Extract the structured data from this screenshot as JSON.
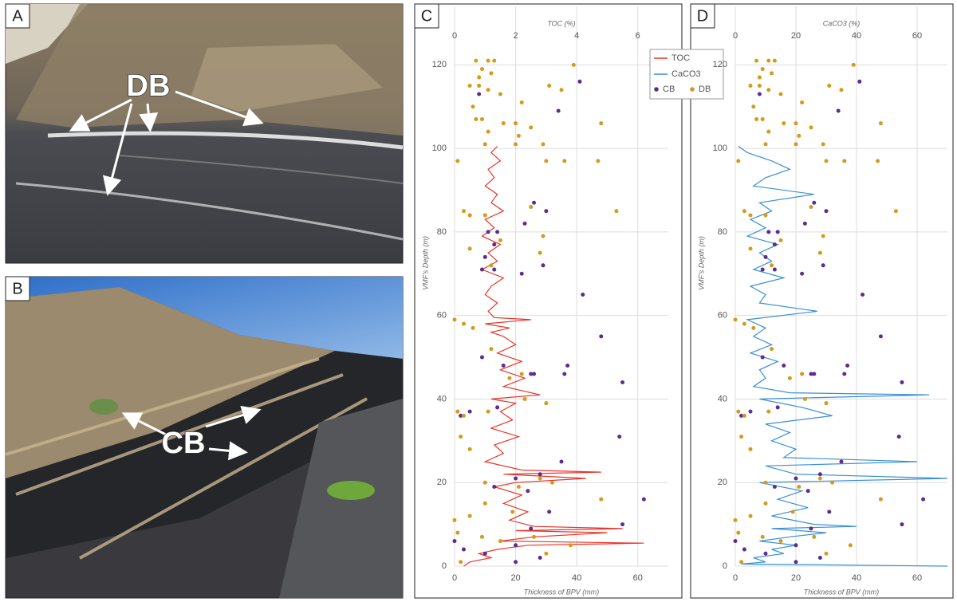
{
  "panels": [
    {
      "letter": "A",
      "label": "DB"
    },
    {
      "letter": "B",
      "label": "CB"
    }
  ],
  "chart_data": [
    {
      "type": "scatter",
      "letter": "C",
      "x_label": "Thickness of BPV (mm)",
      "x2_label": "TOC (%)",
      "y_label": "VMF's Depth (m)",
      "xlim": [
        0,
        70
      ],
      "xticks": [
        0,
        20,
        40,
        60
      ],
      "x2lim": [
        0,
        7
      ],
      "x2ticks": [
        0,
        2,
        4,
        6
      ],
      "ylim": [
        0,
        134
      ],
      "yticks": [
        0,
        20,
        40,
        60,
        80,
        100,
        120
      ],
      "grid": true,
      "legend_position": "upper right",
      "legend": [
        {
          "name": "TOC",
          "color": "#e8352a"
        },
        {
          "name": "CaCO3",
          "color": "#3a8fd4"
        },
        {
          "name": "CB",
          "color": "#5b2d8e"
        },
        {
          "name": "DB",
          "color": "#d39a1c"
        }
      ],
      "lines": [
        {
          "color": "#e8352a",
          "axis": "x2",
          "x": [
            1.4,
            1.2,
            1.5,
            1.1,
            1.3,
            1.0,
            1.4,
            1.2,
            1.6,
            1.0,
            1.3,
            0.9,
            1.5,
            1.1,
            1.4,
            0.9,
            1.6,
            1.2,
            1.0,
            1.4,
            1.1,
            1.3,
            2.5,
            1.0,
            1.8,
            1.2,
            1.6,
            2.0,
            1.4,
            2.2,
            1.5,
            2.3,
            1.6,
            2.8,
            1.2,
            2.0,
            1.5,
            1.9,
            1.2,
            2.1,
            1.3,
            1.6,
            1.0,
            2.2,
            4.8,
            1.6,
            4.3,
            2.0,
            1.3,
            2.2,
            1.6,
            2.4,
            1.8,
            2.6,
            5.5,
            2.0,
            5.0,
            2.6,
            1.5,
            6.2,
            2.4,
            1.4,
            0.8,
            1.2,
            0.5,
            0.3
          ],
          "y": [
            100.5,
            99,
            97,
            95,
            93,
            91,
            89,
            87,
            85,
            83,
            81,
            79,
            77,
            75,
            73,
            71,
            69,
            67,
            65,
            63,
            61,
            59.5,
            59,
            58,
            57,
            56,
            55,
            53,
            51,
            49,
            47,
            45,
            43,
            41,
            40,
            39,
            37,
            35,
            33,
            31,
            29,
            27,
            25,
            23,
            22.5,
            22,
            21,
            20,
            19,
            17,
            15,
            13,
            11,
            9.5,
            9,
            8.5,
            8,
            7,
            6,
            5.5,
            5,
            4,
            3,
            2,
            1,
            0
          ]
        }
      ],
      "points": [
        {
          "color": "#5b2d8e",
          "x": [
            41,
            8,
            34,
            26,
            30,
            23,
            14,
            11,
            13,
            10,
            13,
            9,
            29,
            22,
            42,
            48,
            9,
            16,
            25,
            26,
            37,
            36,
            55,
            14,
            5,
            2,
            54,
            35,
            28,
            20,
            13,
            24,
            62,
            31,
            25,
            55,
            0,
            20,
            3,
            10,
            20,
            28
          ],
          "y": [
            116,
            113,
            109,
            87,
            85,
            82,
            80,
            80,
            77,
            74,
            71,
            71,
            72,
            70,
            65,
            55,
            50,
            48,
            46,
            46,
            48,
            46,
            44,
            38,
            37,
            36,
            31,
            25,
            22,
            21,
            19,
            18,
            16,
            13,
            9,
            10,
            6,
            5,
            4,
            3,
            1,
            2
          ]
        },
        {
          "color": "#d39a1c",
          "x": [
            7,
            11,
            13,
            9,
            39,
            8,
            8,
            12,
            5,
            35,
            6,
            11,
            15,
            22,
            31,
            7,
            9,
            11,
            16,
            20,
            25,
            21,
            48,
            20,
            10,
            29,
            30,
            36,
            47,
            1,
            3,
            5,
            10,
            25,
            53,
            29,
            15,
            5,
            12,
            28,
            0,
            3,
            6,
            12,
            22,
            18,
            23,
            1,
            3,
            11,
            30,
            2,
            5,
            10,
            28,
            21,
            32,
            10,
            19,
            0,
            5,
            48,
            1,
            9,
            15,
            26,
            30,
            38,
            2
          ],
          "y": [
            121,
            121,
            121,
            119,
            120,
            117,
            115,
            118,
            115,
            114,
            110,
            114,
            113,
            111,
            115,
            107,
            107,
            104,
            106,
            106,
            105,
            103,
            106,
            101,
            101,
            101,
            97,
            97,
            97,
            97,
            85,
            84,
            84,
            86,
            85,
            79,
            78,
            76,
            72,
            75,
            59,
            58,
            57,
            52,
            46,
            45,
            40,
            37,
            36,
            37,
            39,
            31,
            28,
            20,
            21,
            19,
            20,
            15,
            13,
            11,
            12,
            16,
            8,
            7,
            6,
            7,
            3,
            5,
            1
          ]
        }
      ]
    },
    {
      "type": "scatter",
      "letter": "D",
      "x_label": "Thickness of BPV (mm)",
      "x2_label": "CaCO3 (%)",
      "y_label": "VMF's Depth (m)",
      "xlim": [
        0,
        70
      ],
      "xticks": [
        0,
        20,
        40,
        60
      ],
      "x2lim": [
        0,
        70
      ],
      "x2ticks": [
        0,
        20,
        40,
        60
      ],
      "ylim": [
        0,
        134
      ],
      "yticks": [
        0,
        20,
        40,
        60,
        80,
        100,
        120
      ],
      "grid": true,
      "lines": [
        {
          "color": "#3a8fd4",
          "axis": "x2",
          "x": [
            1,
            4,
            12,
            18,
            10,
            6,
            26,
            8,
            12,
            5,
            10,
            4,
            14,
            8,
            12,
            6,
            16,
            5,
            10,
            8,
            27,
            4,
            10,
            6,
            12,
            5,
            14,
            8,
            10,
            6,
            18,
            64,
            8,
            22,
            32,
            10,
            18,
            12,
            20,
            16,
            60,
            10,
            20,
            70,
            8,
            22,
            14,
            24,
            12,
            26,
            40,
            12,
            30,
            18,
            8,
            20,
            12,
            16,
            6,
            10,
            2,
            70
          ],
          "y": [
            100.5,
            99,
            97,
            95,
            93,
            91,
            89,
            87,
            85,
            83,
            81,
            79,
            77,
            75,
            73,
            71,
            69,
            67,
            65,
            63,
            61,
            59,
            57,
            55,
            53,
            51,
            49,
            47,
            45,
            43,
            41.5,
            41,
            40,
            38,
            36,
            34,
            32,
            30,
            28,
            26,
            25,
            24,
            22,
            21,
            20,
            18,
            16,
            14,
            12,
            10,
            9.5,
            9,
            8,
            7,
            6,
            5,
            4,
            3,
            2,
            1,
            0.5,
            0
          ]
        }
      ],
      "points": [
        {
          "color": "#5b2d8e",
          "x": [
            41,
            8,
            34,
            26,
            30,
            23,
            14,
            11,
            13,
            10,
            13,
            9,
            29,
            22,
            42,
            48,
            9,
            16,
            25,
            26,
            37,
            36,
            55,
            14,
            5,
            2,
            54,
            35,
            28,
            20,
            13,
            24,
            62,
            31,
            25,
            55,
            0,
            20,
            3,
            10,
            20,
            28
          ],
          "y": [
            116,
            113,
            109,
            87,
            85,
            82,
            80,
            80,
            77,
            74,
            71,
            71,
            72,
            70,
            65,
            55,
            50,
            48,
            46,
            46,
            48,
            46,
            44,
            38,
            37,
            36,
            31,
            25,
            22,
            21,
            19,
            18,
            16,
            13,
            9,
            10,
            6,
            5,
            4,
            3,
            1,
            2
          ]
        },
        {
          "color": "#d39a1c",
          "x": [
            7,
            11,
            13,
            9,
            39,
            8,
            8,
            12,
            5,
            35,
            6,
            11,
            15,
            22,
            31,
            7,
            9,
            11,
            16,
            20,
            25,
            21,
            48,
            20,
            10,
            29,
            30,
            36,
            47,
            1,
            3,
            5,
            10,
            25,
            53,
            29,
            15,
            5,
            12,
            28,
            0,
            3,
            6,
            12,
            22,
            18,
            23,
            1,
            3,
            11,
            30,
            2,
            5,
            10,
            28,
            21,
            32,
            10,
            19,
            0,
            5,
            48,
            1,
            9,
            15,
            26,
            30,
            38,
            2
          ],
          "y": [
            121,
            121,
            121,
            119,
            120,
            117,
            115,
            118,
            115,
            114,
            110,
            114,
            113,
            111,
            115,
            107,
            107,
            104,
            106,
            106,
            105,
            103,
            106,
            101,
            101,
            101,
            97,
            97,
            97,
            97,
            85,
            84,
            84,
            86,
            85,
            79,
            78,
            76,
            72,
            75,
            59,
            58,
            57,
            52,
            46,
            45,
            40,
            37,
            36,
            37,
            39,
            31,
            28,
            20,
            21,
            19,
            20,
            15,
            13,
            11,
            12,
            16,
            8,
            7,
            6,
            7,
            3,
            5,
            1
          ]
        }
      ]
    }
  ]
}
